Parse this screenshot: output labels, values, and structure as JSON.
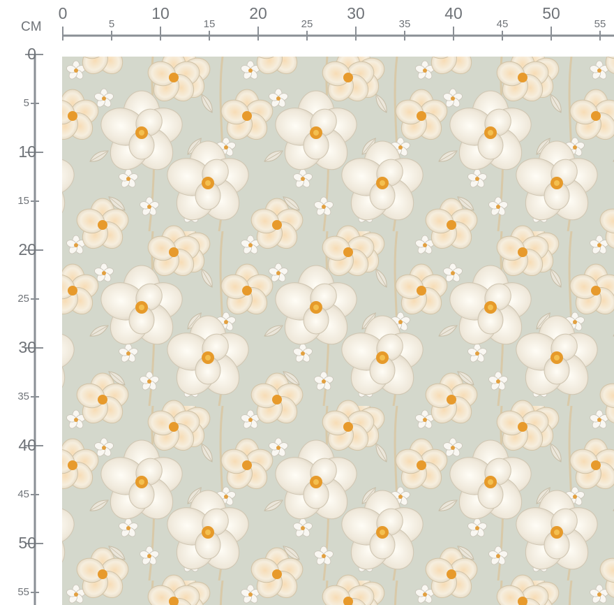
{
  "ruler": {
    "unit": "CM",
    "top_labels": [
      "0",
      "5",
      "10",
      "15",
      "20",
      "25",
      "30",
      "35",
      "40",
      "45",
      "50",
      "55"
    ],
    "left_labels": [
      "0",
      "5",
      "10",
      "15",
      "20",
      "25",
      "30",
      "35",
      "40",
      "45",
      "50",
      "55"
    ],
    "color": "#8a8f95"
  },
  "fabric": {
    "description_icon": "floral-pattern-image",
    "background_color": "#d4d8cc",
    "petal_color": "#f6f1e6",
    "center_color": "#e69a2a"
  }
}
